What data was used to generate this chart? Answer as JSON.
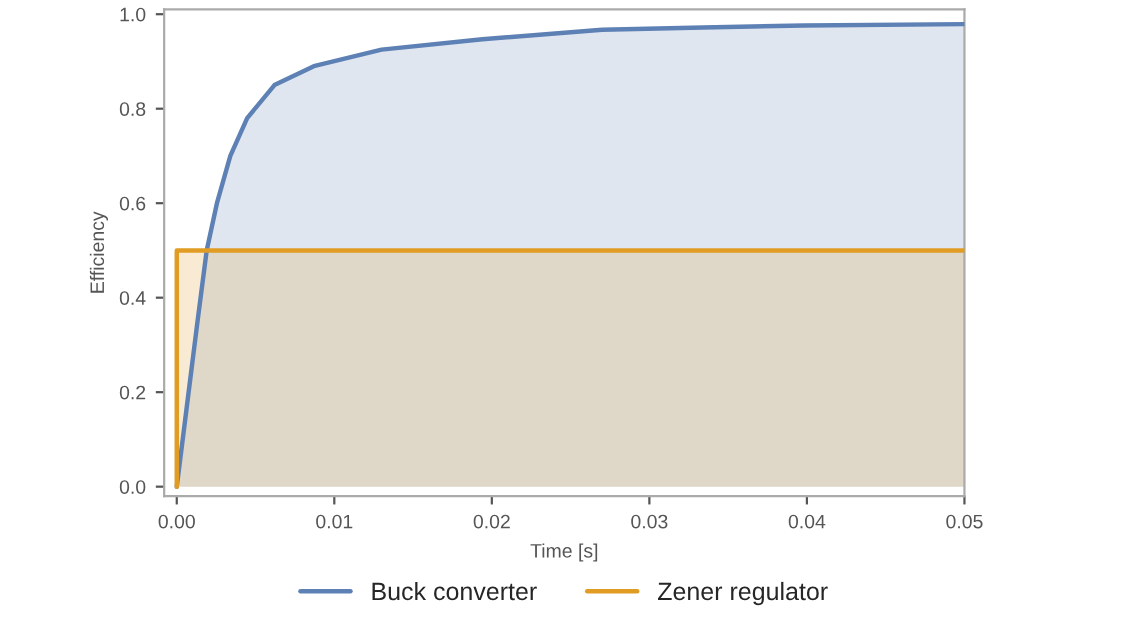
{
  "chart_data": {
    "type": "area",
    "xlabel": "Time [s]",
    "ylabel": "Efficiency",
    "xlim": [
      -0.0008,
      0.05
    ],
    "ylim": [
      -0.02,
      1.01
    ],
    "xticks": [
      {
        "value": 0,
        "label": "0.00"
      },
      {
        "value": 0.01,
        "label": "0.01"
      },
      {
        "value": 0.02,
        "label": "0.02"
      },
      {
        "value": 0.03,
        "label": "0.03"
      },
      {
        "value": 0.04,
        "label": "0.04"
      },
      {
        "value": 0.05,
        "label": "0.05"
      }
    ],
    "yticks": [
      {
        "value": 0,
        "label": "0.0"
      },
      {
        "value": 0.2,
        "label": "0.2"
      },
      {
        "value": 0.4,
        "label": "0.4"
      },
      {
        "value": 0.6,
        "label": "0.6"
      },
      {
        "value": 0.8,
        "label": "0.8"
      },
      {
        "value": 1,
        "label": "1.0"
      }
    ],
    "grid": false,
    "legend": "bottom",
    "series": [
      {
        "name": "Buck converter",
        "color": "#5e81b5",
        "x": [
          0,
          0.00064,
          0.00128,
          0.0019,
          0.00255,
          0.0034,
          0.00447,
          0.0062,
          0.0087,
          0.013,
          0.0194,
          0.027,
          0.0334,
          0.0398,
          0.05
        ],
        "values": [
          0,
          0.17,
          0.34,
          0.5,
          0.6,
          0.7,
          0.78,
          0.85,
          0.89,
          0.925,
          0.947,
          0.967,
          0.972,
          0.976,
          0.979
        ]
      },
      {
        "name": "Zener regulator",
        "color": "#e19c24",
        "x": [
          0,
          0,
          0.05
        ],
        "values": [
          0,
          0.5,
          0.5
        ]
      }
    ]
  }
}
